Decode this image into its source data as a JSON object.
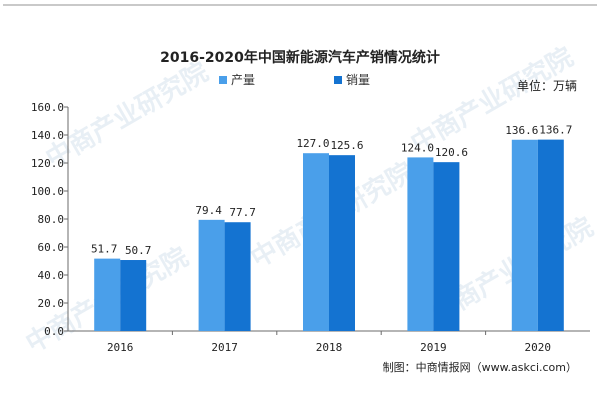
{
  "chart_data": {
    "type": "bar",
    "title": "2016-2020年中国新能源汽车产销情况统计",
    "unit_label": "单位：万辆",
    "categories": [
      "2016",
      "2017",
      "2018",
      "2019",
      "2020"
    ],
    "series": [
      {
        "name": "产量",
        "values": [
          51.7,
          79.4,
          127.0,
          124.0,
          136.6
        ]
      },
      {
        "name": "销量",
        "values": [
          50.7,
          77.7,
          125.6,
          120.6,
          136.7
        ]
      }
    ],
    "value_labels": [
      [
        "51.7",
        "79.4",
        "127.0",
        "124.0",
        "136.6"
      ],
      [
        "50.7",
        "77.7",
        "125.6",
        "120.6",
        "136.7"
      ]
    ],
    "ylim": [
      0,
      160
    ],
    "yticks": [
      0,
      20,
      40,
      60,
      80,
      100,
      120,
      140,
      160
    ],
    "ytick_labels": [
      "0.0",
      "20.0",
      "40.0",
      "60.0",
      "80.0",
      "100.0",
      "120.0",
      "140.0",
      "160.0"
    ],
    "legend_position": "top-center",
    "grid": false,
    "colors": {
      "series1": "#4a9fea",
      "series2": "#1473d1",
      "axis": "#6b6b6b"
    }
  },
  "watermark": "中商产业研究院",
  "source": "制图：中商情报网（www.askci.com）"
}
